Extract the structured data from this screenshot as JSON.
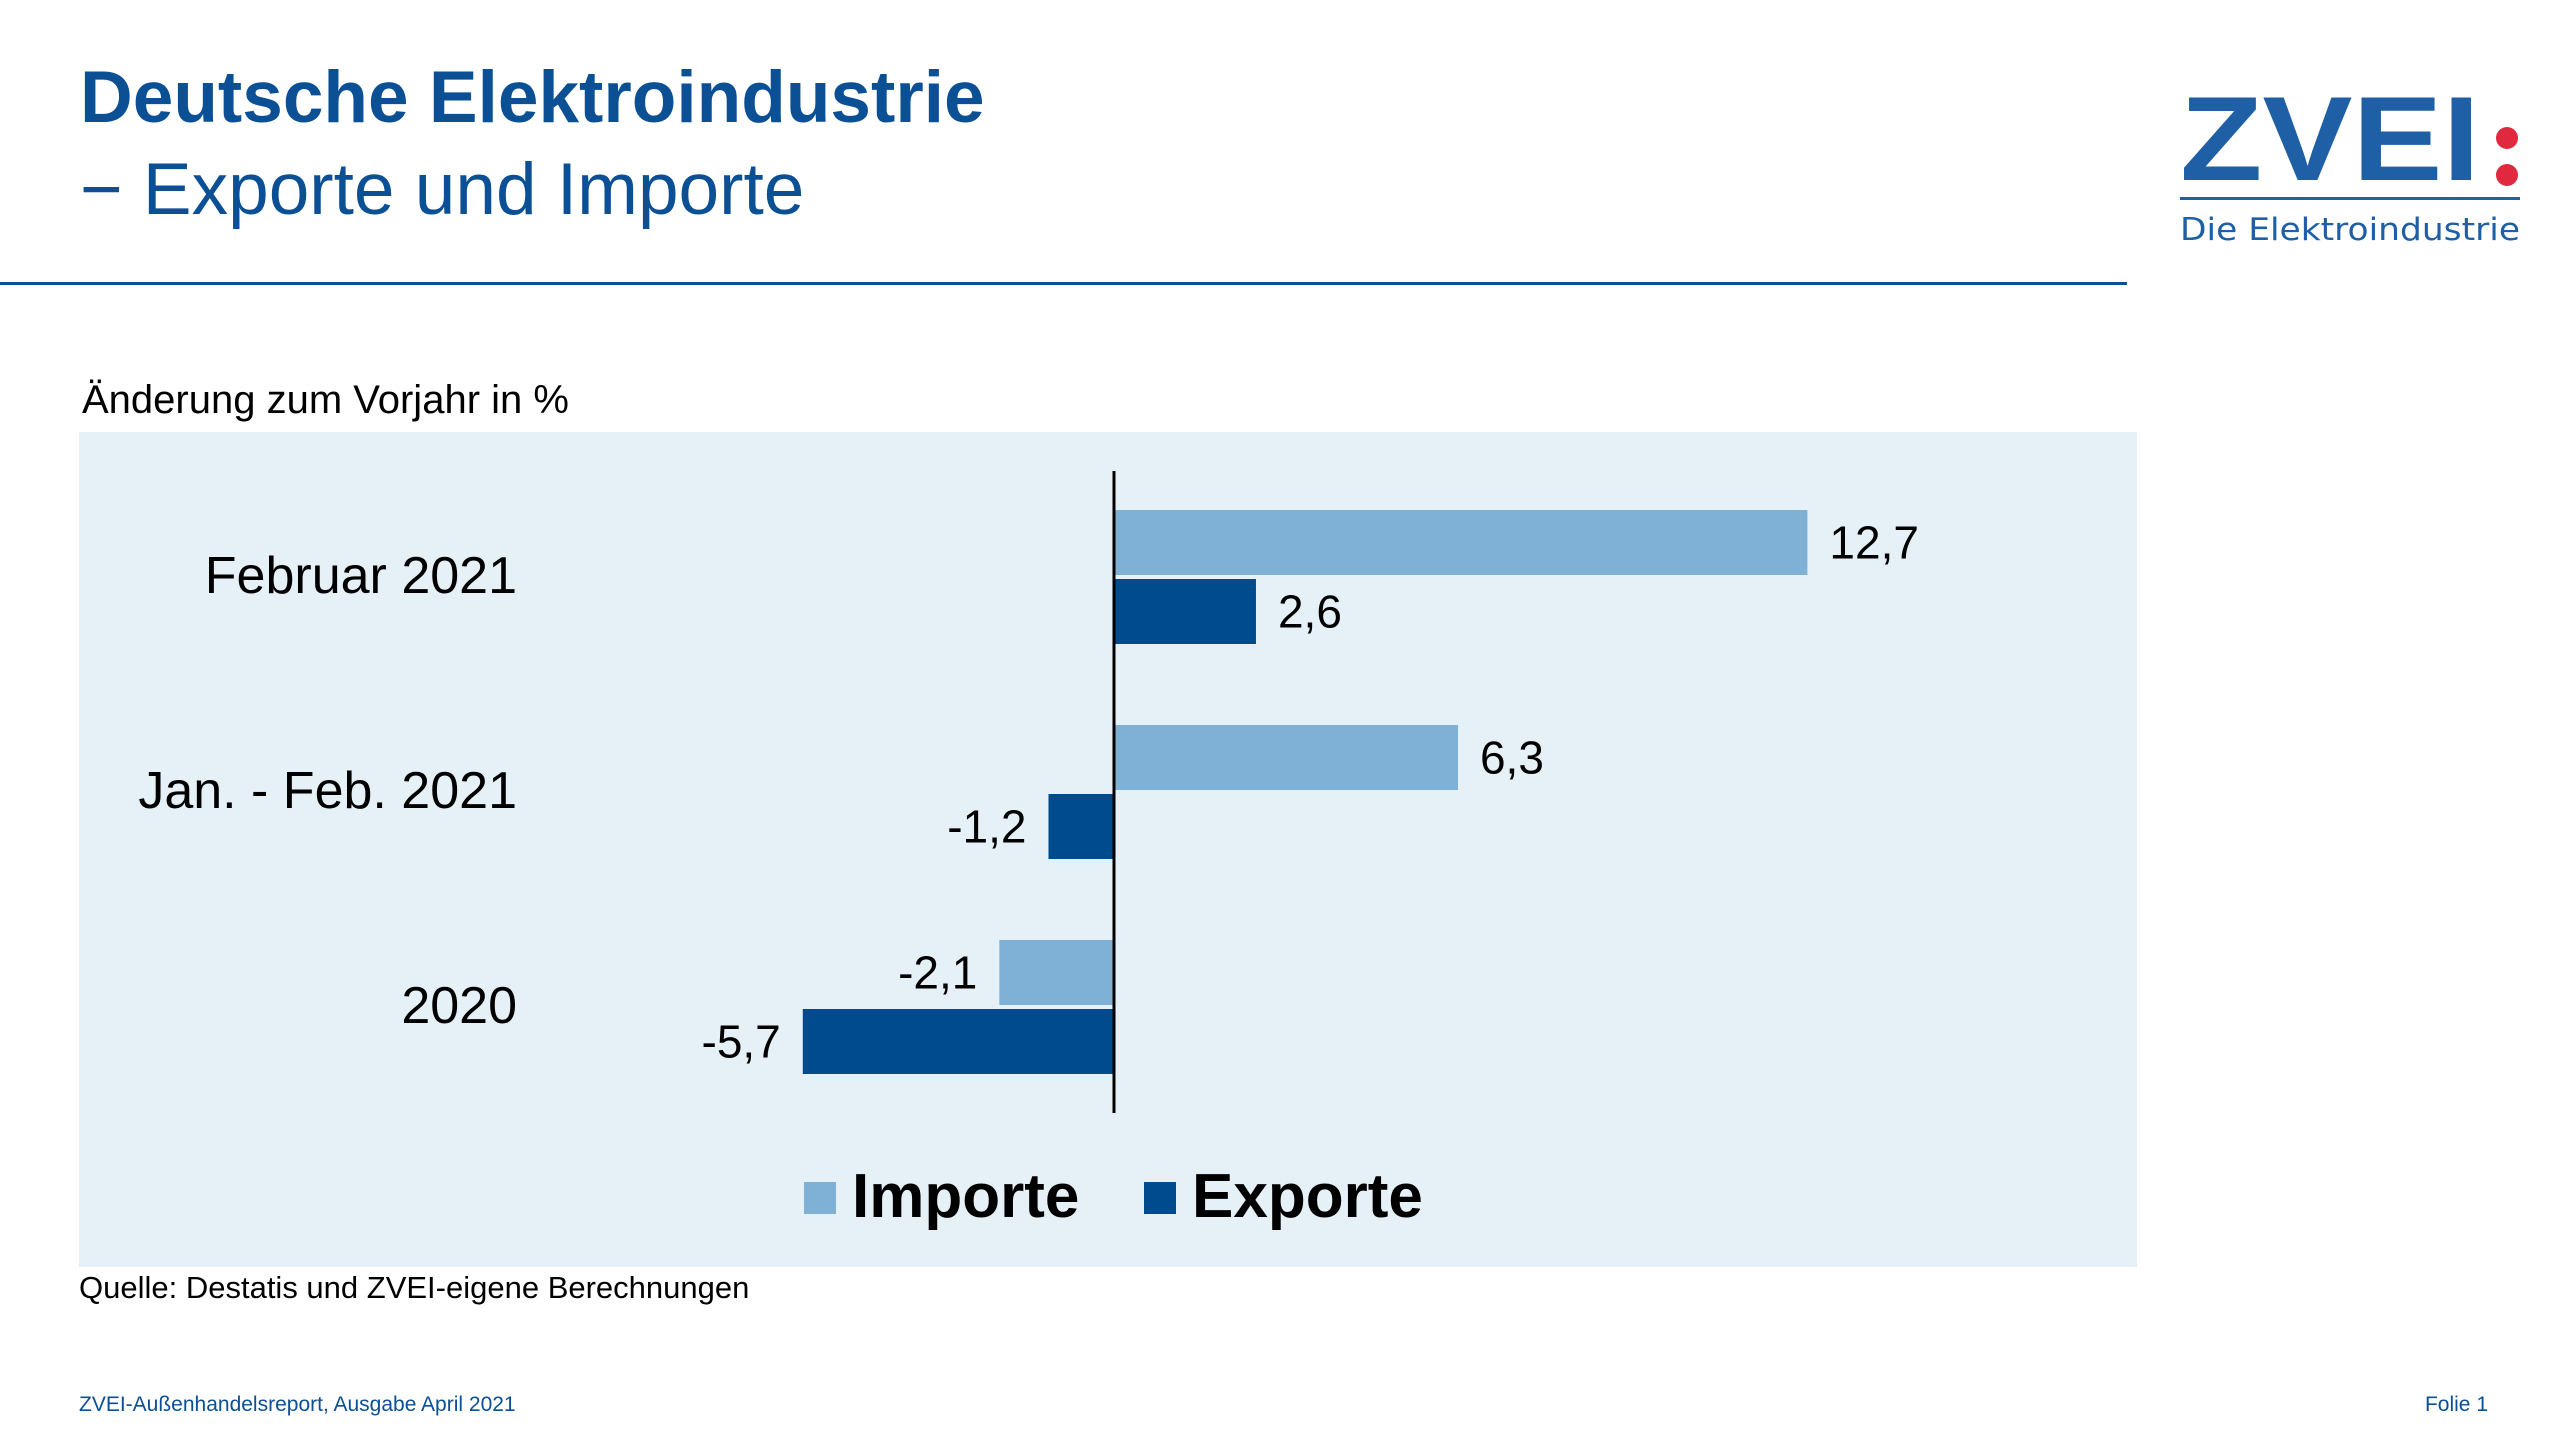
{
  "header": {
    "title": "Deutsche Elektroindustrie",
    "subtitle": "− Exporte und Importe"
  },
  "logo": {
    "text": "ZVEI:",
    "tagline": "Die Elektroindustrie",
    "blue": "#1f5fa5",
    "red": "#e0283f"
  },
  "chart_data": {
    "type": "bar",
    "orientation": "horizontal",
    "title": "",
    "ylabel": "Änderung zum Vorjahr in %",
    "categories": [
      "Februar 2021",
      "Jan. - Feb. 2021",
      "2020"
    ],
    "series": [
      {
        "name": "Importe",
        "color": "#7fb0d5",
        "values": [
          12.7,
          6.3,
          -2.1
        ],
        "labels": [
          "12,7",
          "6,3",
          "-2,1"
        ]
      },
      {
        "name": "Exporte",
        "color": "#004b8d",
        "values": [
          2.6,
          -1.2,
          -5.7
        ],
        "labels": [
          "2,6",
          "-1,2",
          "-5,7"
        ]
      }
    ],
    "xlim": [
      -11.5,
      26
    ],
    "grid": false,
    "legend_placement": "bottom",
    "background": "#e5f0f7"
  },
  "source": "Quelle: Destatis und ZVEI-eigene Berechnungen",
  "footer": {
    "left": "ZVEI-Außenhandelsreport, Ausgabe April 2021",
    "right": "Folie 1"
  }
}
